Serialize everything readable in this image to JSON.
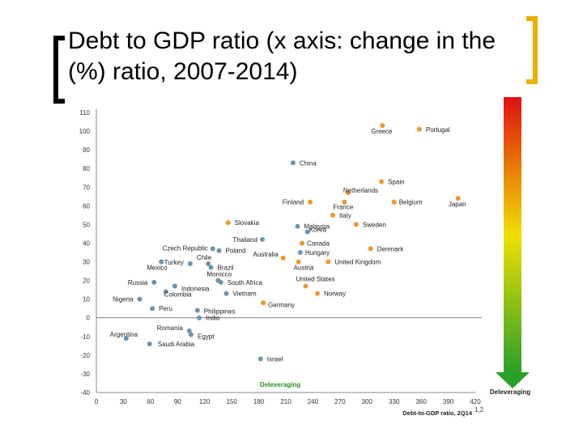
{
  "slide": {
    "title": "Debt to GDP ratio (x axis: change in the (%) ratio, 2007-2014)"
  },
  "colors": {
    "orange": "#f0962a",
    "blue": "#6f93ab",
    "axis": "#888888",
    "gradient_top": "#e01010",
    "gradient_mid": "#f0e000",
    "gradient_bottom": "#2aa02a"
  },
  "chart_data": {
    "type": "scatter",
    "title": "",
    "xlabel": "Debt-to-GDP ratio, 2Q14",
    "xlabel_superscript": "1,2",
    "ylabel": "",
    "xlim": [
      0,
      420
    ],
    "ylim": [
      -40,
      110
    ],
    "xticks": [
      0,
      30,
      60,
      90,
      120,
      150,
      180,
      210,
      240,
      270,
      300,
      330,
      360,
      390,
      420
    ],
    "yticks": [
      110,
      100,
      90,
      80,
      70,
      60,
      50,
      40,
      30,
      20,
      10,
      0,
      -10,
      -20,
      -30,
      -40
    ],
    "grid": false,
    "annotations": [
      {
        "text": "Deleveraging",
        "where": "bottom-center"
      },
      {
        "text": "Deleveraging",
        "where": "bottom-right-gradient-bar"
      }
    ],
    "series": [
      {
        "name": "advanced",
        "color": "#f0962a",
        "points": [
          {
            "label": "Greece",
            "x": 317,
            "y": 103
          },
          {
            "label": "Portugal",
            "x": 358,
            "y": 101
          },
          {
            "label": "Spain",
            "x": 316,
            "y": 73
          },
          {
            "label": "Netherlands",
            "x": 279,
            "y": 67
          },
          {
            "label": "France",
            "x": 275,
            "y": 62
          },
          {
            "label": "Belgium",
            "x": 330,
            "y": 62
          },
          {
            "label": "Japan",
            "x": 401,
            "y": 64
          },
          {
            "label": "Finland",
            "x": 237,
            "y": 62
          },
          {
            "label": "Italy",
            "x": 262,
            "y": 55
          },
          {
            "label": "Slovakia",
            "x": 146,
            "y": 51
          },
          {
            "label": "Sweden",
            "x": 288,
            "y": 50
          },
          {
            "label": "Canada",
            "x": 228,
            "y": 40
          },
          {
            "label": "Denmark",
            "x": 304,
            "y": 37
          },
          {
            "label": "Australia",
            "x": 207,
            "y": 32
          },
          {
            "label": "Austria",
            "x": 224,
            "y": 30
          },
          {
            "label": "United Kingdom",
            "x": 257,
            "y": 30
          },
          {
            "label": "United States",
            "x": 232,
            "y": 17
          },
          {
            "label": "Norway",
            "x": 245,
            "y": 13
          },
          {
            "label": "Germany",
            "x": 185,
            "y": 8
          }
        ]
      },
      {
        "name": "developing",
        "color": "#6f93ab",
        "points": [
          {
            "label": "China",
            "x": 218,
            "y": 83
          },
          {
            "label": "Malaysia",
            "x": 223,
            "y": 49
          },
          {
            "label": "Korea",
            "x": 234,
            "y": 46
          },
          {
            "label": "Thailand",
            "x": 184,
            "y": 42
          },
          {
            "label": "Czech Republic",
            "x": 129,
            "y": 37
          },
          {
            "label": "Poland",
            "x": 136,
            "y": 36
          },
          {
            "label": "Hungary",
            "x": 226,
            "y": 35
          },
          {
            "label": "Turkey",
            "x": 104,
            "y": 29
          },
          {
            "label": "Chile",
            "x": 124,
            "y": 29
          },
          {
            "label": "Mexico",
            "x": 72,
            "y": 30
          },
          {
            "label": "Brazil",
            "x": 127,
            "y": 27
          },
          {
            "label": "Morocco",
            "x": 135,
            "y": 20
          },
          {
            "label": "Russia",
            "x": 64,
            "y": 19
          },
          {
            "label": "Indonesia",
            "x": 87,
            "y": 17
          },
          {
            "label": "South Africa",
            "x": 138,
            "y": 19
          },
          {
            "label": "Vietnam",
            "x": 144,
            "y": 13
          },
          {
            "label": "Colombia",
            "x": 77,
            "y": 14
          },
          {
            "label": "Nigeria",
            "x": 48,
            "y": 10
          },
          {
            "label": "Peru",
            "x": 62,
            "y": 5
          },
          {
            "label": "Philippines",
            "x": 112,
            "y": 4
          },
          {
            "label": "India",
            "x": 114,
            "y": 0
          },
          {
            "label": "Argentina",
            "x": 33,
            "y": -11
          },
          {
            "label": "Romania",
            "x": 103,
            "y": -7
          },
          {
            "label": "Egypt",
            "x": 105,
            "y": -9
          },
          {
            "label": "Saudi Arabia",
            "x": 59,
            "y": -14
          },
          {
            "label": "Israel",
            "x": 182,
            "y": -22
          }
        ]
      }
    ]
  }
}
